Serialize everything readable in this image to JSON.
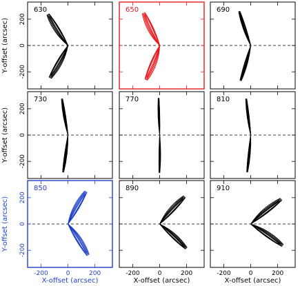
{
  "figure": {
    "xlabel": "X-offset (arcsec)",
    "ylabel": "Y-offset (arcsec)"
  },
  "chart_data": {
    "type": "scatter",
    "xlim": [
      -300,
      330
    ],
    "ylim": [
      -330,
      330
    ],
    "xticks": [
      -200,
      0,
      200
    ],
    "yticks": [
      -200,
      0,
      200
    ],
    "reference_line": "dashed horizontal line at y = 0",
    "panels": [
      {
        "label": "630",
        "color": "#000000",
        "tip": [
          0,
          0
        ],
        "arms": [
          {
            "end": [
              -140,
              240
            ],
            "spread": 55
          },
          {
            "end": [
              -140,
              -240
            ],
            "spread": 55
          }
        ]
      },
      {
        "label": "650",
        "color": "#e8191c",
        "tip": [
          0,
          0
        ],
        "arms": [
          {
            "end": [
              -110,
              250
            ],
            "spread": 60
          },
          {
            "end": [
              -110,
              -255
            ],
            "spread": 60
          }
        ]
      },
      {
        "label": "690",
        "color": "#000000",
        "tip": [
          0,
          0
        ],
        "arms": [
          {
            "end": [
              -80,
              260
            ],
            "spread": 30
          },
          {
            "end": [
              -80,
              -265
            ],
            "spread": 30
          }
        ]
      },
      {
        "label": "730",
        "color": "#000000",
        "tip": [
          0,
          0
        ],
        "arms": [
          {
            "end": [
              -40,
              275
            ],
            "spread": 25
          },
          {
            "end": [
              -40,
              -280
            ],
            "spread": 25
          }
        ]
      },
      {
        "label": "770",
        "color": "#000000",
        "tip": [
          0,
          0
        ],
        "arms": [
          {
            "end": [
              -5,
              280
            ],
            "spread": 18
          },
          {
            "end": [
              -5,
              -285
            ],
            "spread": 18
          }
        ]
      },
      {
        "label": "810",
        "color": "#000000",
        "tip": [
          0,
          0
        ],
        "arms": [
          {
            "end": [
              -30,
              275
            ],
            "spread": 22
          },
          {
            "end": [
              -30,
              -280
            ],
            "spread": 22
          }
        ]
      },
      {
        "label": "850",
        "color": "#1e3fc8",
        "tip": [
          0,
          0
        ],
        "arms": [
          {
            "end": [
              140,
              240
            ],
            "spread": 55
          },
          {
            "end": [
              140,
              -240
            ],
            "spread": 55
          }
        ]
      },
      {
        "label": "890",
        "color": "#000000",
        "tip": [
          0,
          0
        ],
        "arms": [
          {
            "end": [
              190,
              200
            ],
            "spread": 55
          },
          {
            "end": [
              190,
              -190
            ],
            "spread": 50
          }
        ]
      },
      {
        "label": "910",
        "color": "#000000",
        "tip": [
          0,
          0
        ],
        "arms": [
          {
            "end": [
              230,
              180
            ],
            "spread": 55
          },
          {
            "end": [
              230,
              -170
            ],
            "spread": 55
          }
        ]
      }
    ]
  }
}
